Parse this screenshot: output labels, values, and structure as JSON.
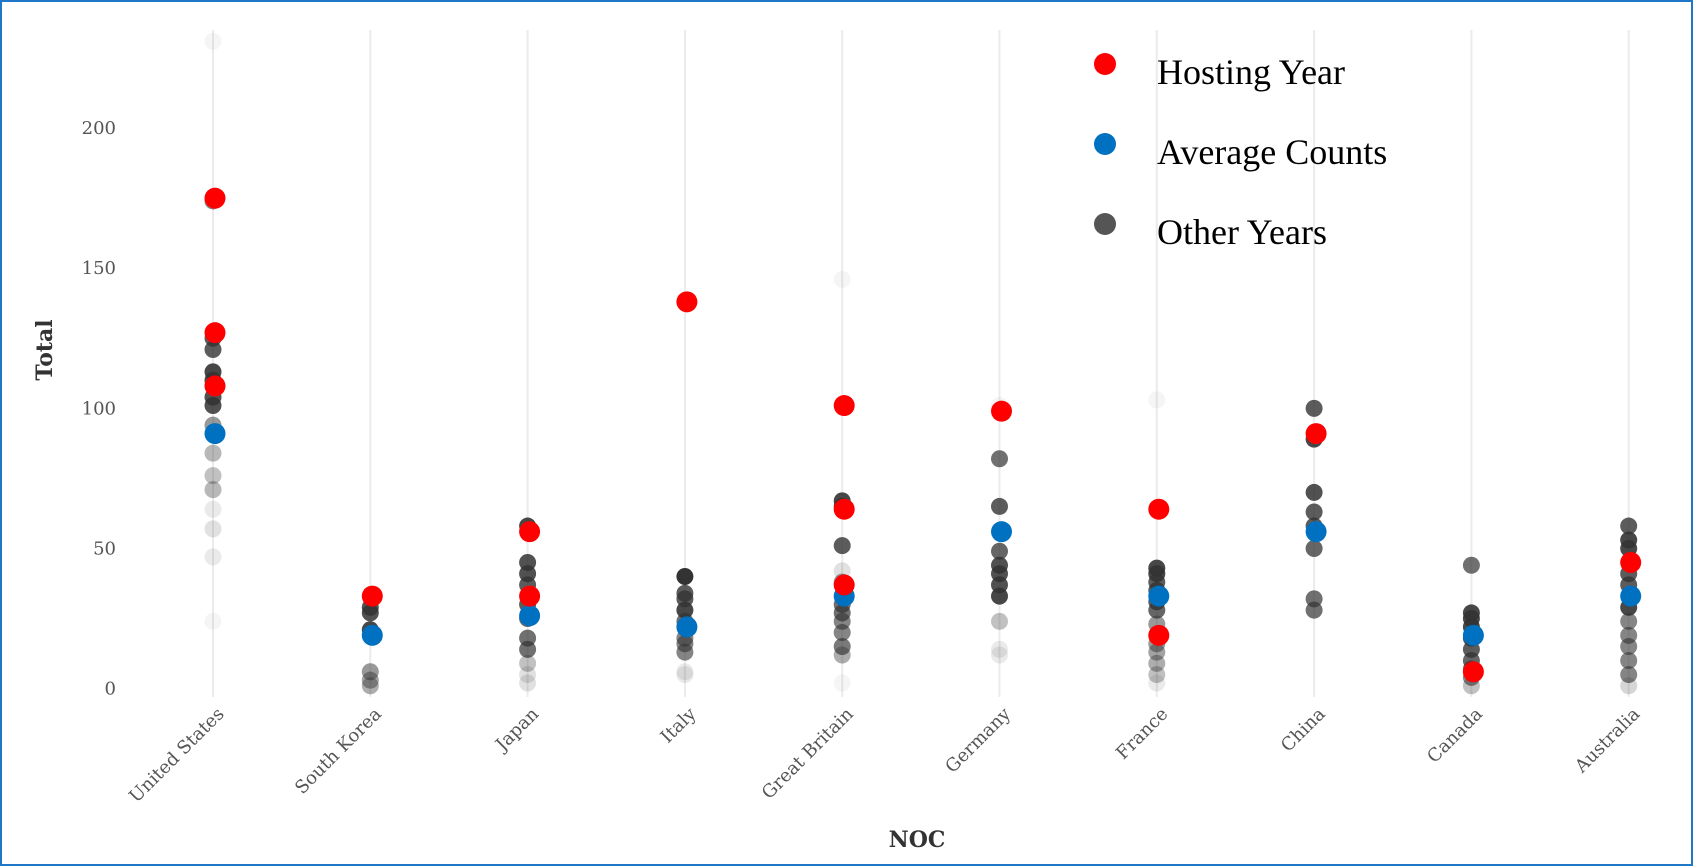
{
  "chart_data": {
    "type": "scatter",
    "xlabel": "NOC",
    "ylabel": "Total",
    "ylim": [
      -3,
      235
    ],
    "y_ticks": [
      0,
      50,
      100,
      150,
      200
    ],
    "grid": "vertical",
    "legend_placement": "top-right",
    "categories": [
      "United States",
      "South Korea",
      "Japan",
      "Italy",
      "Great Britain",
      "Germany",
      "France",
      "China",
      "Canada",
      "Australia"
    ],
    "colors": {
      "hosting": "#ff0000",
      "average": "#0070c0",
      "other": "#333333"
    },
    "series": [
      {
        "name": "Hosting Year",
        "color": "#ff0000",
        "points": [
          {
            "x": "United States",
            "y": 175
          },
          {
            "x": "United States",
            "y": 127
          },
          {
            "x": "United States",
            "y": 108
          },
          {
            "x": "South Korea",
            "y": 33
          },
          {
            "x": "Japan",
            "y": 56
          },
          {
            "x": "Japan",
            "y": 33
          },
          {
            "x": "Italy",
            "y": 138
          },
          {
            "x": "Great Britain",
            "y": 101
          },
          {
            "x": "Great Britain",
            "y": 64
          },
          {
            "x": "Great Britain",
            "y": 37
          },
          {
            "x": "Germany",
            "y": 99
          },
          {
            "x": "France",
            "y": 64
          },
          {
            "x": "France",
            "y": 19
          },
          {
            "x": "China",
            "y": 91
          },
          {
            "x": "Canada",
            "y": 6
          },
          {
            "x": "Australia",
            "y": 45
          }
        ]
      },
      {
        "name": "Average Counts",
        "color": "#0070c0",
        "points": [
          {
            "x": "United States",
            "y": 91
          },
          {
            "x": "South Korea",
            "y": 19
          },
          {
            "x": "Japan",
            "y": 26
          },
          {
            "x": "Italy",
            "y": 22
          },
          {
            "x": "Great Britain",
            "y": 33
          },
          {
            "x": "Germany",
            "y": 56
          },
          {
            "x": "France",
            "y": 33
          },
          {
            "x": "China",
            "y": 56
          },
          {
            "x": "Canada",
            "y": 19
          },
          {
            "x": "Australia",
            "y": 33
          }
        ]
      },
      {
        "name": "Other Years",
        "color": "#333333",
        "points": [
          {
            "x": "United States",
            "y": 231,
            "alpha": 0.05
          },
          {
            "x": "United States",
            "y": 174,
            "alpha": 0.6
          },
          {
            "x": "United States",
            "y": 125,
            "alpha": 0.8
          },
          {
            "x": "United States",
            "y": 121,
            "alpha": 0.8
          },
          {
            "x": "United States",
            "y": 113,
            "alpha": 0.9
          },
          {
            "x": "United States",
            "y": 110,
            "alpha": 0.9
          },
          {
            "x": "United States",
            "y": 104,
            "alpha": 0.85
          },
          {
            "x": "United States",
            "y": 101,
            "alpha": 0.85
          },
          {
            "x": "United States",
            "y": 94,
            "alpha": 0.5
          },
          {
            "x": "United States",
            "y": 84,
            "alpha": 0.35
          },
          {
            "x": "United States",
            "y": 76,
            "alpha": 0.3
          },
          {
            "x": "United States",
            "y": 71,
            "alpha": 0.35
          },
          {
            "x": "United States",
            "y": 64,
            "alpha": 0.1
          },
          {
            "x": "United States",
            "y": 57,
            "alpha": 0.15
          },
          {
            "x": "United States",
            "y": 47,
            "alpha": 0.1
          },
          {
            "x": "United States",
            "y": 24,
            "alpha": 0.05
          },
          {
            "x": "South Korea",
            "y": 29,
            "alpha": 0.85
          },
          {
            "x": "South Korea",
            "y": 27,
            "alpha": 0.85
          },
          {
            "x": "South Korea",
            "y": 21,
            "alpha": 0.9
          },
          {
            "x": "South Korea",
            "y": 6,
            "alpha": 0.5
          },
          {
            "x": "South Korea",
            "y": 3,
            "alpha": 0.45
          },
          {
            "x": "South Korea",
            "y": 1,
            "alpha": 0.4
          },
          {
            "x": "Japan",
            "y": 58,
            "alpha": 0.9
          },
          {
            "x": "Japan",
            "y": 45,
            "alpha": 0.85
          },
          {
            "x": "Japan",
            "y": 41,
            "alpha": 0.85
          },
          {
            "x": "Japan",
            "y": 37,
            "alpha": 0.8
          },
          {
            "x": "Japan",
            "y": 30,
            "alpha": 0.8
          },
          {
            "x": "Japan",
            "y": 25,
            "alpha": 0.75
          },
          {
            "x": "Japan",
            "y": 18,
            "alpha": 0.7
          },
          {
            "x": "Japan",
            "y": 14,
            "alpha": 0.7
          },
          {
            "x": "Japan",
            "y": 9,
            "alpha": 0.3
          },
          {
            "x": "Japan",
            "y": 5,
            "alpha": 0.15
          },
          {
            "x": "Japan",
            "y": 2,
            "alpha": 0.15
          },
          {
            "x": "Italy",
            "y": 40,
            "alpha": 1
          },
          {
            "x": "Italy",
            "y": 34,
            "alpha": 0.8
          },
          {
            "x": "Italy",
            "y": 32,
            "alpha": 0.8
          },
          {
            "x": "Italy",
            "y": 28,
            "alpha": 0.9
          },
          {
            "x": "Italy",
            "y": 24,
            "alpha": 0.7
          },
          {
            "x": "Italy",
            "y": 18,
            "alpha": 0.6
          },
          {
            "x": "Italy",
            "y": 16,
            "alpha": 0.6
          },
          {
            "x": "Italy",
            "y": 13,
            "alpha": 0.6
          },
          {
            "x": "Italy",
            "y": 6,
            "alpha": 0.1
          },
          {
            "x": "Italy",
            "y": 5,
            "alpha": 0.1
          },
          {
            "x": "Great Britain",
            "y": 146,
            "alpha": 0.05
          },
          {
            "x": "Great Britain",
            "y": 67,
            "alpha": 0.9
          },
          {
            "x": "Great Britain",
            "y": 65,
            "alpha": 0.9
          },
          {
            "x": "Great Britain",
            "y": 51,
            "alpha": 0.8
          },
          {
            "x": "Great Britain",
            "y": 42,
            "alpha": 0.15
          },
          {
            "x": "Great Britain",
            "y": 38,
            "alpha": 0.5
          },
          {
            "x": "Great Britain",
            "y": 30,
            "alpha": 0.7
          },
          {
            "x": "Great Britain",
            "y": 27,
            "alpha": 0.7
          },
          {
            "x": "Great Britain",
            "y": 24,
            "alpha": 0.6
          },
          {
            "x": "Great Britain",
            "y": 20,
            "alpha": 0.6
          },
          {
            "x": "Great Britain",
            "y": 15,
            "alpha": 0.65
          },
          {
            "x": "Great Britain",
            "y": 12,
            "alpha": 0.4
          },
          {
            "x": "Great Britain",
            "y": 2,
            "alpha": 0.05
          },
          {
            "x": "Germany",
            "y": 101,
            "alpha": 0.05
          },
          {
            "x": "Germany",
            "y": 82,
            "alpha": 0.7
          },
          {
            "x": "Germany",
            "y": 65,
            "alpha": 0.8
          },
          {
            "x": "Germany",
            "y": 49,
            "alpha": 0.75
          },
          {
            "x": "Germany",
            "y": 44,
            "alpha": 0.85
          },
          {
            "x": "Germany",
            "y": 41,
            "alpha": 0.85
          },
          {
            "x": "Germany",
            "y": 37,
            "alpha": 0.85
          },
          {
            "x": "Germany",
            "y": 33,
            "alpha": 0.9
          },
          {
            "x": "Germany",
            "y": 24,
            "alpha": 0.3
          },
          {
            "x": "Germany",
            "y": 14,
            "alpha": 0.1
          },
          {
            "x": "Germany",
            "y": 12,
            "alpha": 0.1
          },
          {
            "x": "France",
            "y": 103,
            "alpha": 0.05
          },
          {
            "x": "France",
            "y": 43,
            "alpha": 0.9
          },
          {
            "x": "France",
            "y": 41,
            "alpha": 0.9
          },
          {
            "x": "France",
            "y": 38,
            "alpha": 0.8
          },
          {
            "x": "France",
            "y": 35,
            "alpha": 0.8
          },
          {
            "x": "France",
            "y": 31,
            "alpha": 0.8
          },
          {
            "x": "France",
            "y": 28,
            "alpha": 0.75
          },
          {
            "x": "France",
            "y": 23,
            "alpha": 0.5
          },
          {
            "x": "France",
            "y": 16,
            "alpha": 0.5
          },
          {
            "x": "France",
            "y": 13,
            "alpha": 0.45
          },
          {
            "x": "France",
            "y": 9,
            "alpha": 0.4
          },
          {
            "x": "France",
            "y": 5,
            "alpha": 0.3
          },
          {
            "x": "France",
            "y": 2,
            "alpha": 0.1
          },
          {
            "x": "China",
            "y": 100,
            "alpha": 0.8
          },
          {
            "x": "China",
            "y": 89,
            "alpha": 0.9
          },
          {
            "x": "China",
            "y": 70,
            "alpha": 0.85
          },
          {
            "x": "China",
            "y": 63,
            "alpha": 0.8
          },
          {
            "x": "China",
            "y": 58,
            "alpha": 0.8
          },
          {
            "x": "China",
            "y": 50,
            "alpha": 0.75
          },
          {
            "x": "China",
            "y": 32,
            "alpha": 0.7
          },
          {
            "x": "China",
            "y": 28,
            "alpha": 0.7
          },
          {
            "x": "Canada",
            "y": 44,
            "alpha": 0.7
          },
          {
            "x": "Canada",
            "y": 27,
            "alpha": 0.9
          },
          {
            "x": "Canada",
            "y": 25,
            "alpha": 0.9
          },
          {
            "x": "Canada",
            "y": 22,
            "alpha": 0.9
          },
          {
            "x": "Canada",
            "y": 18,
            "alpha": 0.85
          },
          {
            "x": "Canada",
            "y": 14,
            "alpha": 0.8
          },
          {
            "x": "Canada",
            "y": 10,
            "alpha": 0.75
          },
          {
            "x": "Canada",
            "y": 7,
            "alpha": 0.7
          },
          {
            "x": "Canada",
            "y": 4,
            "alpha": 0.6
          },
          {
            "x": "Canada",
            "y": 1,
            "alpha": 0.3
          },
          {
            "x": "Australia",
            "y": 58,
            "alpha": 0.8
          },
          {
            "x": "Australia",
            "y": 53,
            "alpha": 0.9
          },
          {
            "x": "Australia",
            "y": 50,
            "alpha": 0.9
          },
          {
            "x": "Australia",
            "y": 41,
            "alpha": 0.8
          },
          {
            "x": "Australia",
            "y": 37,
            "alpha": 0.8
          },
          {
            "x": "Australia",
            "y": 29,
            "alpha": 0.9
          },
          {
            "x": "Australia",
            "y": 24,
            "alpha": 0.6
          },
          {
            "x": "Australia",
            "y": 19,
            "alpha": 0.6
          },
          {
            "x": "Australia",
            "y": 15,
            "alpha": 0.6
          },
          {
            "x": "Australia",
            "y": 10,
            "alpha": 0.6
          },
          {
            "x": "Australia",
            "y": 5,
            "alpha": 0.6
          },
          {
            "x": "Australia",
            "y": 1,
            "alpha": 0.2
          }
        ]
      }
    ],
    "legend": {
      "items": [
        {
          "label": "Hosting Year",
          "color": "#ff0000"
        },
        {
          "label": " Average Counts",
          "color": "#0070c0"
        },
        {
          "label": " Other Years",
          "color": "#555555"
        }
      ]
    }
  }
}
